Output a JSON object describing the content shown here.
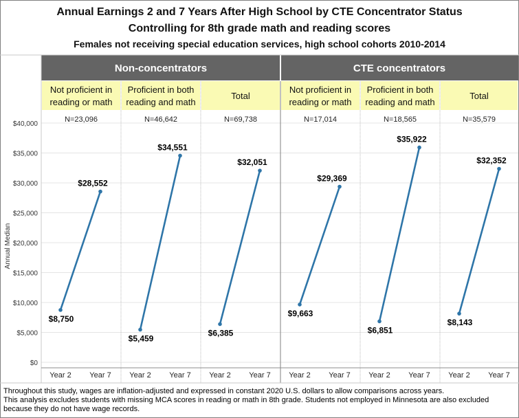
{
  "title": "Annual Earnings 2 and 7 Years After High School by CTE Concentrator Status",
  "subtitle": "Controlling for 8th grade math and reading scores",
  "subtitle2": "Females not receiving special education services, high school cohorts 2010-2014",
  "notes": [
    "Throughout this study, wages are inflation-adjusted and expressed in constant 2020 U.S. dollars to allow comparisons across years.",
    "This analysis excludes students with missing MCA scores in reading or math in 8th grade. Students not employed in Minnesota are also excluded",
    "because they do not have wage records."
  ],
  "colors": {
    "group_header_bg": "#646464",
    "group_header_text": "#ffffff",
    "sub_header_bg": "#fafab4",
    "line": "#2e75a8",
    "grid": "#e4e4e4",
    "divider": "#c8c8c8"
  },
  "chart_data": {
    "type": "line",
    "ylabel": "Annual Median",
    "ylim": [
      0,
      40000
    ],
    "yticks": [
      0,
      5000,
      10000,
      15000,
      20000,
      25000,
      30000,
      35000,
      40000
    ],
    "ytick_labels": [
      "$0",
      "$5,000",
      "$10,000",
      "$15,000",
      "$20,000",
      "$25,000",
      "$30,000",
      "$35,000",
      "$40,000"
    ],
    "x_categories": [
      "Year 2",
      "Year 7"
    ],
    "groups": [
      {
        "name": "Non-concentrators",
        "panels": [
          {
            "label_lines": [
              "Not proficient in",
              "reading or math"
            ],
            "n_label": "N=23,096",
            "values": [
              8750,
              28552
            ],
            "value_labels": [
              "$8,750",
              "$28,552"
            ]
          },
          {
            "label_lines": [
              "Proficient in both",
              "reading and math"
            ],
            "n_label": "N=46,642",
            "values": [
              5459,
              34551
            ],
            "value_labels": [
              "$5,459",
              "$34,551"
            ]
          },
          {
            "label_lines": [
              "Total"
            ],
            "n_label": "N=69,738",
            "values": [
              6385,
              32051
            ],
            "value_labels": [
              "$6,385",
              "$32,051"
            ]
          }
        ]
      },
      {
        "name": "CTE concentrators",
        "panels": [
          {
            "label_lines": [
              "Not proficient in",
              "reading or math"
            ],
            "n_label": "N=17,014",
            "values": [
              9663,
              29369
            ],
            "value_labels": [
              "$9,663",
              "$29,369"
            ]
          },
          {
            "label_lines": [
              "Proficient in both",
              "reading and math"
            ],
            "n_label": "N=18,565",
            "values": [
              6851,
              35922
            ],
            "value_labels": [
              "$6,851",
              "$35,922"
            ]
          },
          {
            "label_lines": [
              "Total"
            ],
            "n_label": "N=35,579",
            "values": [
              8143,
              32352
            ],
            "value_labels": [
              "$8,143",
              "$32,352"
            ]
          }
        ]
      }
    ]
  }
}
